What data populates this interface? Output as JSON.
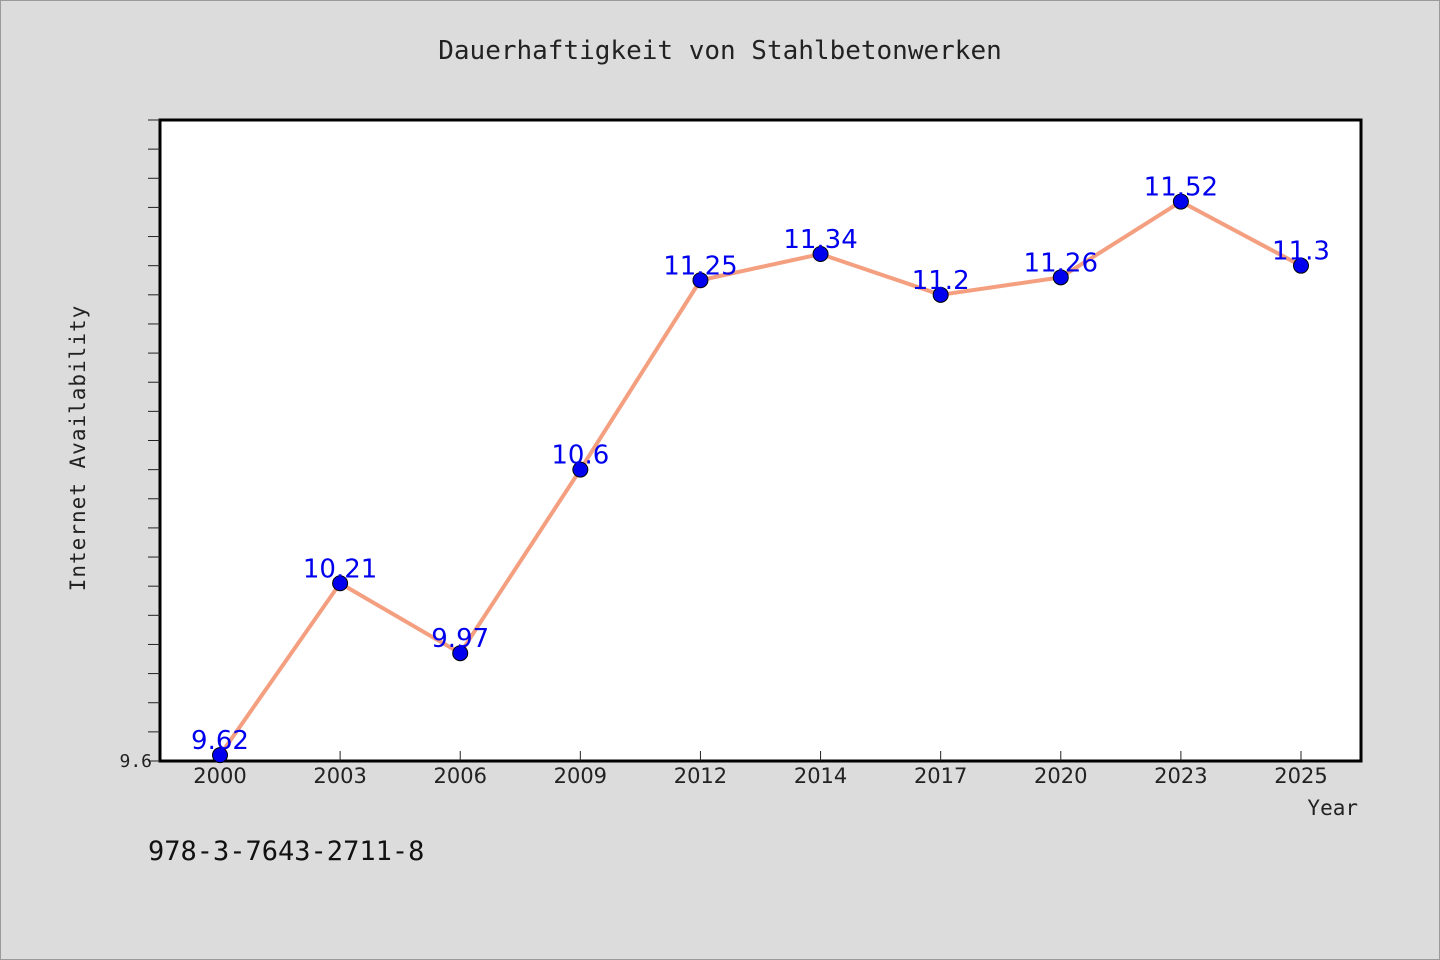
{
  "colors": {
    "background": "#dcdcdc",
    "plot_background": "#ffffff",
    "line": "#f4a080",
    "marker": "#0000ee",
    "data_label": "#0000ee"
  },
  "isbn": "978-3-7643-2711-8",
  "chart_data": {
    "type": "line",
    "title": "Dauerhaftigkeit von Stahlbetonwerken",
    "xlabel": "Year",
    "ylabel": "Internet Availability",
    "categories": [
      "2000",
      "2003",
      "2006",
      "2009",
      "2012",
      "2014",
      "2017",
      "2020",
      "2023",
      "2025"
    ],
    "series": [
      {
        "values": [
          9.62,
          10.21,
          9.97,
          10.6,
          11.25,
          11.34,
          11.2,
          11.26,
          11.52,
          11.3
        ],
        "labels": [
          "9.62",
          "10.21",
          "9.97",
          "10.6",
          "11.25",
          "11.34",
          "11.2",
          "11.26",
          "11.52",
          "11.3"
        ]
      }
    ],
    "ylim": [
      9.6,
      11.8
    ],
    "y_tick_labels": [
      "9.6"
    ],
    "grid": false,
    "legend": "none"
  }
}
